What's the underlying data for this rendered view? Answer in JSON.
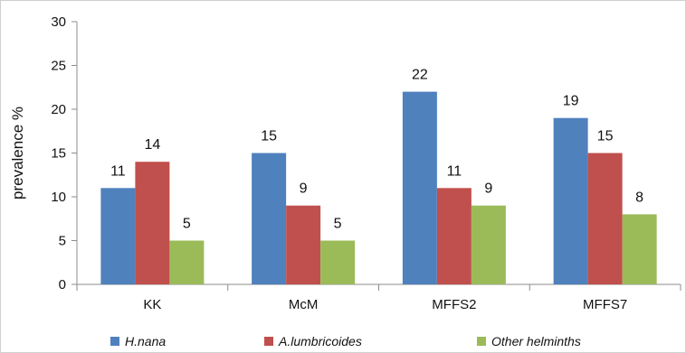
{
  "chart_data": {
    "type": "bar",
    "categories": [
      "KK",
      "McM",
      "MFFS2",
      "MFFS7"
    ],
    "series": [
      {
        "name": "H.nana",
        "values": [
          11,
          15,
          22,
          19
        ],
        "color": "#4F81BD"
      },
      {
        "name": "A.lumbricoides",
        "values": [
          14,
          9,
          11,
          15
        ],
        "color": "#C0504D"
      },
      {
        "name": "Other helminths",
        "values": [
          5,
          5,
          9,
          8
        ],
        "color": "#9BBB59"
      }
    ],
    "title": "",
    "xlabel": "",
    "ylabel": "prevalence %",
    "ylim": [
      0,
      30
    ],
    "yticks": [
      0,
      5,
      10,
      15,
      20,
      25,
      30
    ],
    "grid": false,
    "legend": "bottom",
    "data_labels": true
  }
}
